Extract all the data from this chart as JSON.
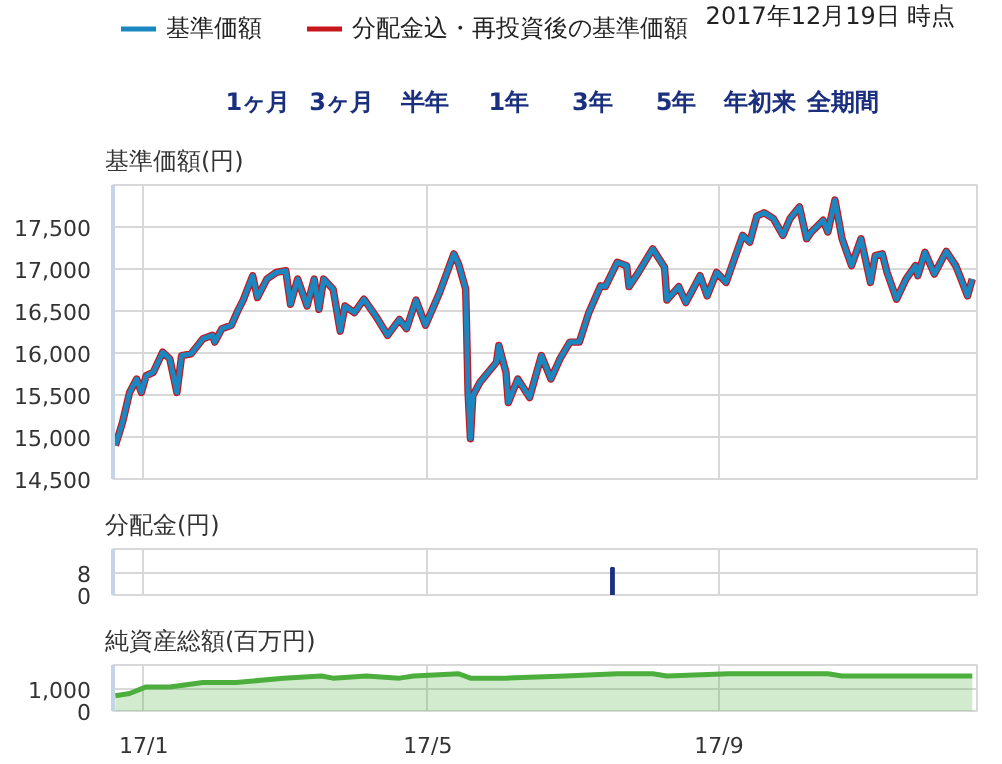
{
  "chart_data": [
    {
      "type": "line",
      "ylabel": "基準価額(円)",
      "legend": "top left",
      "grid": true,
      "tick_labels": "y",
      "annotations": [
        "2017年12月19日 時点",
        "1ヶ月",
        "3ヶ月",
        "半年",
        "1年",
        "3年",
        "5年",
        "年初来",
        "全期間"
      ],
      "xlim": [
        "2016-12-19",
        "2017-12-19"
      ],
      "xticks": [
        "2017-01-01",
        "2017-05-01",
        "2017-09-01"
      ],
      "ylim": [
        14500,
        18000
      ],
      "yticks": [
        {
          "value": 14500,
          "label": "14,500"
        },
        {
          "value": 15000,
          "label": "15,000"
        },
        {
          "value": 15500,
          "label": "15,500"
        },
        {
          "value": 16000,
          "label": "16,000"
        },
        {
          "value": 16500,
          "label": "16,500"
        },
        {
          "value": 17000,
          "label": "17,000"
        },
        {
          "value": 17500,
          "label": "17,500"
        }
      ],
      "x": [
        "2016-12-20",
        "2016-12-23",
        "2016-12-24",
        "2016-12-26",
        "2016-12-29",
        "2016-12-31",
        "2017-01-02",
        "2017-01-05",
        "2017-01-09",
        "2017-01-12",
        "2017-01-15",
        "2017-01-17",
        "2017-01-21",
        "2017-01-26",
        "2017-01-30",
        "2017-01-31",
        "2017-02-03",
        "2017-02-07",
        "2017-02-10",
        "2017-02-12",
        "2017-02-16",
        "2017-02-18",
        "2017-02-22",
        "2017-02-26",
        "2017-03-02",
        "2017-03-04",
        "2017-03-07",
        "2017-03-11",
        "2017-03-14",
        "2017-03-16",
        "2017-03-18",
        "2017-03-22",
        "2017-03-25",
        "2017-03-27",
        "2017-03-31",
        "2017-04-04",
        "2017-04-09",
        "2017-04-14",
        "2017-04-19",
        "2017-04-22",
        "2017-04-26",
        "2017-04-30",
        "2017-05-06",
        "2017-05-12",
        "2017-05-14",
        "2017-05-17",
        "2017-05-18",
        "2017-05-19",
        "2017-05-20",
        "2017-05-23",
        "2017-05-30",
        "2017-05-31",
        "2017-06-03",
        "2017-06-04",
        "2017-06-08",
        "2017-06-13",
        "2017-06-18",
        "2017-06-22",
        "2017-06-26",
        "2017-06-30",
        "2017-07-04",
        "2017-07-08",
        "2017-07-13",
        "2017-07-15",
        "2017-07-20",
        "2017-07-24",
        "2017-07-25",
        "2017-07-29",
        "2017-08-04",
        "2017-08-09",
        "2017-08-10",
        "2017-08-15",
        "2017-08-18",
        "2017-08-21",
        "2017-08-24",
        "2017-08-27",
        "2017-08-31",
        "2017-09-04",
        "2017-09-07",
        "2017-09-11",
        "2017-09-14",
        "2017-09-17",
        "2017-09-20",
        "2017-09-24",
        "2017-09-28",
        "2017-10-01",
        "2017-10-05",
        "2017-10-08",
        "2017-10-10",
        "2017-10-15",
        "2017-10-17",
        "2017-10-20",
        "2017-10-23",
        "2017-10-27",
        "2017-10-31",
        "2017-11-04",
        "2017-11-06",
        "2017-11-09",
        "2017-11-11",
        "2017-11-15",
        "2017-11-19",
        "2017-11-23",
        "2017-11-24",
        "2017-11-27",
        "2017-12-01",
        "2017-12-06",
        "2017-12-10",
        "2017-12-12",
        "2017-12-15",
        "2017-12-17"
      ],
      "series": [
        {
          "name": "基準価額",
          "color": "#1a87c0",
          "values": [
            14900,
            15170,
            15290,
            15530,
            15690,
            15530,
            15730,
            15770,
            16010,
            15930,
            15530,
            15970,
            15990,
            16170,
            16210,
            16130,
            16290,
            16330,
            16520,
            16630,
            16920,
            16660,
            16880,
            16960,
            16980,
            16580,
            16880,
            16560,
            16880,
            16520,
            16880,
            16760,
            16260,
            16560,
            16480,
            16640,
            16440,
            16210,
            16400,
            16290,
            16630,
            16330,
            16720,
            17180,
            17060,
            16760,
            15530,
            14980,
            15490,
            15650,
            15890,
            16090,
            15770,
            15410,
            15690,
            15470,
            15970,
            15690,
            15940,
            16130,
            16130,
            16480,
            16800,
            16790,
            17080,
            17040,
            16790,
            16960,
            17240,
            17020,
            16630,
            16790,
            16600,
            16760,
            16920,
            16680,
            16960,
            16840,
            17080,
            17400,
            17320,
            17630,
            17670,
            17600,
            17400,
            17600,
            17740,
            17360,
            17440,
            17580,
            17440,
            17820,
            17360,
            17040,
            17360,
            16840,
            17160,
            17180,
            16960,
            16640,
            16880,
            17040,
            16920,
            17200,
            16940,
            17210,
            17040,
            16900,
            16680,
            16880
          ]
        },
        {
          "name": "分配金込・再投資後の基準価額",
          "color": "#c8161d",
          "values": [
            14900,
            15170,
            15290,
            15530,
            15690,
            15530,
            15730,
            15770,
            16010,
            15930,
            15530,
            15970,
            15990,
            16170,
            16210,
            16130,
            16290,
            16330,
            16520,
            16630,
            16920,
            16660,
            16880,
            16960,
            16980,
            16580,
            16880,
            16560,
            16880,
            16520,
            16880,
            16760,
            16260,
            16560,
            16480,
            16640,
            16440,
            16210,
            16400,
            16290,
            16630,
            16330,
            16720,
            17180,
            17060,
            16760,
            15530,
            14980,
            15490,
            15650,
            15890,
            16090,
            15770,
            15410,
            15690,
            15470,
            15970,
            15690,
            15940,
            16130,
            16130,
            16480,
            16800,
            16790,
            17080,
            17040,
            16790,
            16960,
            17240,
            17020,
            16630,
            16790,
            16600,
            16760,
            16920,
            16680,
            16960,
            16840,
            17080,
            17400,
            17320,
            17630,
            17670,
            17600,
            17400,
            17600,
            17740,
            17360,
            17440,
            17580,
            17440,
            17820,
            17360,
            17040,
            17360,
            16840,
            17160,
            17180,
            16960,
            16640,
            16880,
            17040,
            16920,
            17200,
            16940,
            17210,
            17040,
            16900,
            16680,
            16880
          ]
        }
      ]
    },
    {
      "type": "bar",
      "ylabel": "分配金(円)",
      "grid": true,
      "tick_labels": "y",
      "xlim": [
        "2016-12-19",
        "2017-12-19"
      ],
      "xticks": [
        "2017-01-01",
        "2017-05-01",
        "2017-09-01"
      ],
      "ylim": [
        0,
        17
      ],
      "yticks": [
        0,
        8
      ],
      "x": [
        "2017-07-18"
      ],
      "series": [
        {
          "color": "#1c2f80",
          "values": [
            10
          ]
        }
      ]
    },
    {
      "type": "area",
      "ylabel": "純資産総額(百万円)",
      "grid": true,
      "xlim": [
        "2016-12-19",
        "2017-12-19"
      ],
      "xticks": [
        {
          "value": "2017-01-01",
          "label": "17/1"
        },
        {
          "value": "2017-05-01",
          "label": "17/5"
        },
        {
          "value": "2017-09-01",
          "label": "17/9"
        }
      ],
      "ylim": [
        0,
        2100
      ],
      "yticks": [
        0,
        {
          "value": 1000,
          "label": "1,000"
        }
      ],
      "x": [
        "2016-12-20",
        "2016-12-26",
        "2017-01-02",
        "2017-01-12",
        "2017-01-26",
        "2017-02-09",
        "2017-03-01",
        "2017-03-17",
        "2017-03-22",
        "2017-04-05",
        "2017-04-19",
        "2017-04-25",
        "2017-05-14",
        "2017-05-19",
        "2017-06-03",
        "2017-06-28",
        "2017-07-20",
        "2017-08-04",
        "2017-08-10",
        "2017-09-05",
        "2017-10-17",
        "2017-10-23",
        "2017-11-18",
        "2017-12-17"
      ],
      "series": [
        {
          "color": "#4cae3c",
          "values": [
            700,
            800,
            1100,
            1100,
            1300,
            1300,
            1500,
            1600,
            1500,
            1600,
            1500,
            1600,
            1700,
            1500,
            1500,
            1600,
            1700,
            1700,
            1600,
            1700,
            1700,
            1600,
            1600,
            1600
          ]
        }
      ]
    }
  ]
}
